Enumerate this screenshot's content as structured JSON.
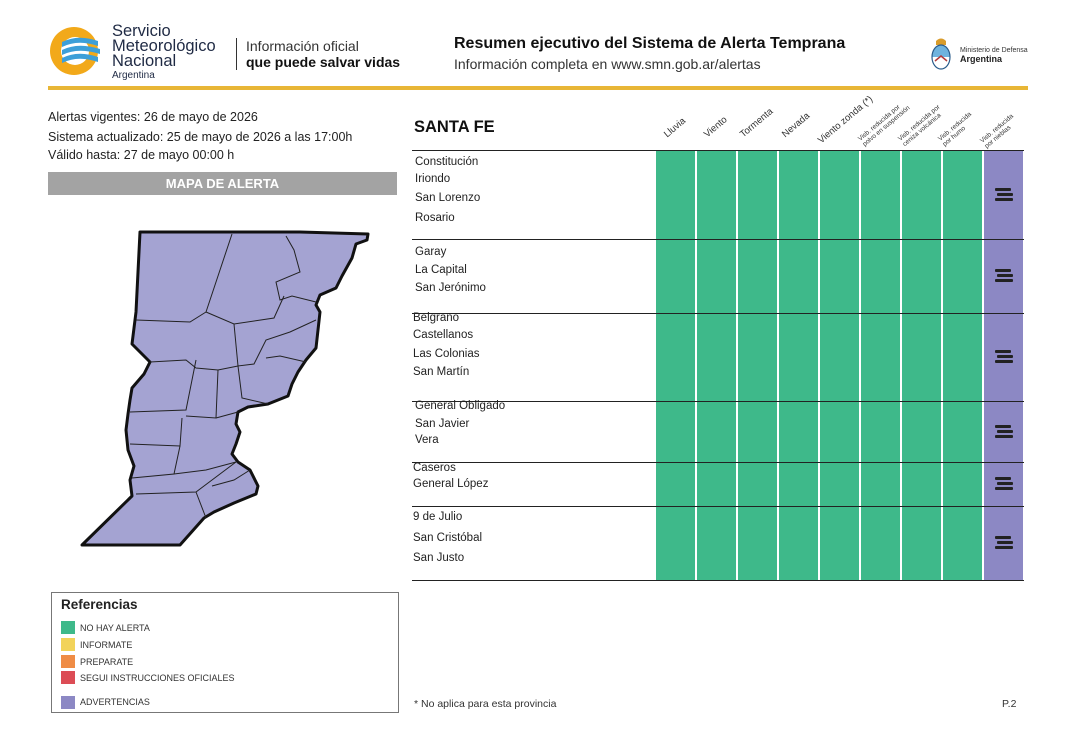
{
  "header": {
    "org_line1": "Servicio",
    "org_line2": "Meteorológico",
    "org_line3": "Nacional",
    "org_country": "Argentina",
    "tagline_line1": "Información oficial",
    "tagline_line2": "que puede salvar vidas",
    "title": "Resumen ejecutivo del Sistema de Alerta Temprana",
    "subtitle": "Información completa en www.smn.gob.ar/alertas",
    "ministry_line1": "Ministerio de Defensa",
    "ministry_line2": "Argentina",
    "accent_color": "#e8b636"
  },
  "info": {
    "vigentes": "Alertas vigentes: 26 de mayo de 2026",
    "actualizado": "Sistema actualizado: 25 de mayo de 2026 a las 17:00h",
    "valido": "Válido hasta: 27 de mayo 00:00 h"
  },
  "map": {
    "header": "MAPA DE ALERTA",
    "region_color": "#a4a3d2",
    "border_color": "#111111"
  },
  "references": {
    "title": "Referencias",
    "items": [
      {
        "label": "NO HAY ALERTA",
        "color": "#3eb98a"
      },
      {
        "label": "INFORMATE",
        "color": "#f2d35a"
      },
      {
        "label": "PREPARATE",
        "color": "#ef8c45"
      },
      {
        "label": "SEGUI INSTRUCCIONES OFICIALES",
        "color": "#dc4c55"
      },
      {
        "label": "ADVERTENCIAS",
        "color": "#8c88c4"
      }
    ]
  },
  "table": {
    "province": "SANTA FE",
    "columns": [
      {
        "line1": "Lluvia",
        "line2": ""
      },
      {
        "line1": "Viento",
        "line2": ""
      },
      {
        "line1": "Tormenta",
        "line2": ""
      },
      {
        "line1": "Nevada",
        "line2": ""
      },
      {
        "line1": "Viento zonda (*)",
        "line2": ""
      },
      {
        "line1": "Visb. reducida por",
        "line2": "polvo en suspensión"
      },
      {
        "line1": "Visb. reducida por",
        "line2": "ceniza volcánica"
      },
      {
        "line1": "Visb. reducida",
        "line2": "por humo"
      },
      {
        "line1": "Visb. reducida",
        "line2": "por nieblas"
      }
    ],
    "groups": [
      {
        "departments": [
          "Constitución",
          "Iriondo",
          "San Lorenzo",
          "Rosario"
        ],
        "status": [
          "none",
          "none",
          "none",
          "none",
          "none",
          "none",
          "none",
          "none",
          "advertencia"
        ]
      },
      {
        "departments": [
          "Garay",
          "La Capital",
          "San Jerónimo"
        ],
        "status": [
          "none",
          "none",
          "none",
          "none",
          "none",
          "none",
          "none",
          "none",
          "advertencia"
        ]
      },
      {
        "departments": [
          "Belgrano",
          "Castellanos",
          "Las Colonias",
          "San Martín"
        ],
        "status": [
          "none",
          "none",
          "none",
          "none",
          "none",
          "none",
          "none",
          "none",
          "advertencia"
        ]
      },
      {
        "departments": [
          "General Obligado",
          "San Javier",
          "Vera"
        ],
        "status": [
          "none",
          "none",
          "none",
          "none",
          "none",
          "none",
          "none",
          "none",
          "advertencia"
        ]
      },
      {
        "departments": [
          "Caseros",
          "General López"
        ],
        "status": [
          "none",
          "none",
          "none",
          "none",
          "none",
          "none",
          "none",
          "none",
          "advertencia"
        ]
      },
      {
        "departments": [
          "9 de Julio",
          "San Cristóbal",
          "San Justo"
        ],
        "status": [
          "none",
          "none",
          "none",
          "none",
          "none",
          "none",
          "none",
          "none",
          "advertencia"
        ]
      }
    ],
    "status_colors": {
      "none": "#3eb98a",
      "advertencia": "#8c88c4"
    },
    "advertencia_icon": "fog-lines-icon"
  },
  "footer": {
    "footnote": "* No aplica para esta provincia",
    "page": "P.2"
  }
}
